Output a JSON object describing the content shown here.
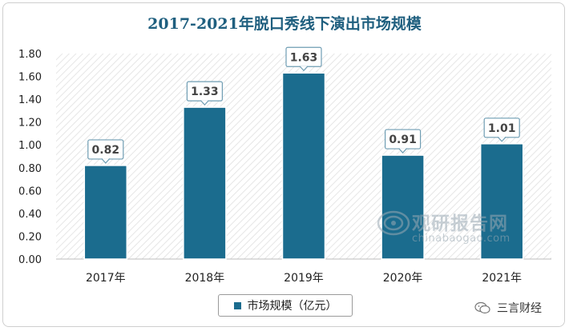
{
  "chart_data": {
    "type": "bar",
    "title": "2017-2021年脱口秀线下演出市场规模",
    "categories": [
      "2017年",
      "2018年",
      "2019年",
      "2020年",
      "2021年"
    ],
    "series": [
      {
        "name": "市场规模（亿元）",
        "values": [
          0.82,
          1.33,
          1.63,
          0.91,
          1.01
        ]
      }
    ],
    "value_labels": [
      "0.82",
      "1.33",
      "1.63",
      "0.91",
      "1.01"
    ],
    "ylim": [
      0,
      1.8
    ],
    "yticks": [
      "0.00",
      "0.20",
      "0.40",
      "0.60",
      "0.80",
      "1.00",
      "1.20",
      "1.40",
      "1.60",
      "1.80"
    ],
    "ytick_values": [
      0,
      0.2,
      0.4,
      0.6,
      0.8,
      1.0,
      1.2,
      1.4,
      1.6,
      1.8
    ],
    "xlabel": "",
    "ylabel": "",
    "grid": false,
    "legend_position": "bottom",
    "colors": {
      "bar": "#1b6c8e",
      "title": "#1f5f7f",
      "hatch": "#e3e3e3"
    }
  },
  "watermark": {
    "name_cn": "观研报告网",
    "site": "chinabaogao.com"
  },
  "brand": {
    "label": "三言财经",
    "icon": "wechat-icon"
  }
}
